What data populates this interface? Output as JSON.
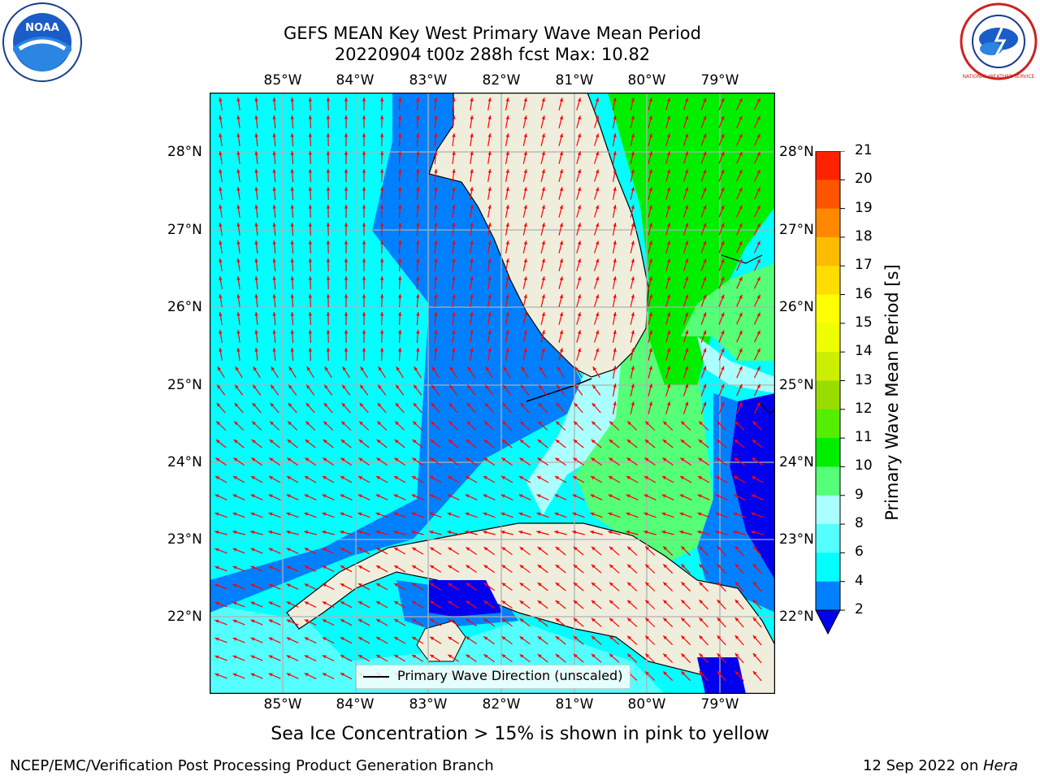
{
  "header": {
    "title_line1": "GEFS MEAN Key West Primary Wave Mean Period",
    "title_line2": "20220904 t00z 288h fcst   Max: 10.82"
  },
  "logos": {
    "noaa_text": "NOAA",
    "nws_text": "NATIONAL WEATHER SERVICE"
  },
  "map": {
    "lon_labels": [
      "85°W",
      "84°W",
      "83°W",
      "82°W",
      "81°W",
      "80°W",
      "79°W"
    ],
    "lat_labels": [
      "28°N",
      "27°N",
      "26°N",
      "25°N",
      "24°N",
      "23°N",
      "22°N"
    ],
    "legend_label": "Primary Wave Direction (unscaled)",
    "colors": {
      "land": "#efeedd",
      "band_2_4": "#0080ff",
      "band_lt2": "#0000ee",
      "band_4_6": "#00ffff",
      "band_6_8": "#55ffff",
      "band_8_9": "#aaffff",
      "band_9_10": "#55ff77",
      "band_10_11": "#00ee00",
      "arrow": "#ff0000",
      "grid": "#b0b0b0"
    }
  },
  "colorbar": {
    "label": "Primary Wave Mean Period [s]",
    "ticks": [
      "2",
      "4",
      "6",
      "8",
      "9",
      "10",
      "11",
      "12",
      "13",
      "14",
      "15",
      "16",
      "17",
      "18",
      "19",
      "20",
      "21"
    ],
    "colors": [
      "#0080ff",
      "#00ffff",
      "#55ffff",
      "#aaffff",
      "#55ff77",
      "#00ee00",
      "#55ee00",
      "#99dd00",
      "#ccee00",
      "#eeff00",
      "#ffff00",
      "#ffdd00",
      "#ffbb00",
      "#ff8800",
      "#ff5500",
      "#ff2200",
      "#ff0000"
    ],
    "under_color": "#0000ee"
  },
  "footer": {
    "note": "Sea Ice Concentration > 15% is shown in pink to yellow",
    "left": "NCEP/EMC/Verification Post Processing Product Generation Branch",
    "right_prefix": "12 Sep 2022 on ",
    "right_host": "Hera"
  }
}
